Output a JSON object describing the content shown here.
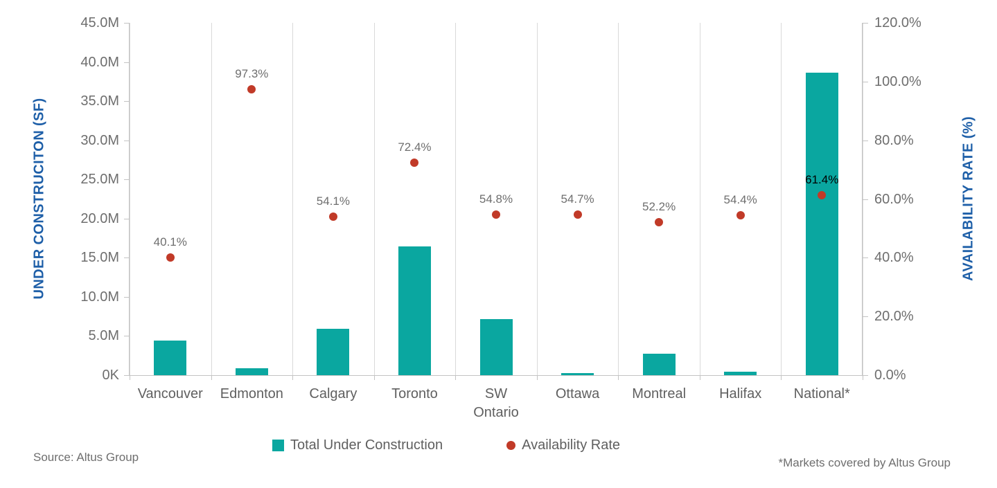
{
  "colors": {
    "bar_teal": "#0aa7a0",
    "dot_red": "#c13a28",
    "axis_title_blue": "#1e5fa8",
    "tick_text_gray": "#6e6e6e",
    "x_label_gray": "#5f5f5f",
    "gridline_gray": "#d9d9d9",
    "national_point_label": "#000000"
  },
  "chart_data": {
    "type": "bar",
    "subtype": "dual-axis combo: bars (left axis) + scatter points with data labels (right axis)",
    "categories": [
      "Vancouver",
      "Edmonton",
      "Calgary",
      "Toronto",
      "SW\nOntario",
      "Ottawa",
      "Montreal",
      "Halifax",
      "National*"
    ],
    "series": [
      {
        "name": "Total Under Construction",
        "type": "bar",
        "axis": "left",
        "unit": "M SF (estimated from axis)",
        "values": [
          4.4,
          0.9,
          5.9,
          16.4,
          7.2,
          0.3,
          2.7,
          0.4,
          38.6
        ]
      },
      {
        "name": "Availability Rate",
        "type": "scatter",
        "axis": "right",
        "unit": "%",
        "values": [
          40.1,
          97.3,
          54.1,
          72.4,
          54.8,
          54.7,
          52.2,
          54.4,
          61.4
        ],
        "labels": [
          "40.1%",
          "97.3%",
          "54.1%",
          "72.4%",
          "54.8%",
          "54.7%",
          "52.2%",
          "54.4%",
          "61.4%"
        ],
        "label_colors": [
          "#6e6e6e",
          "#6e6e6e",
          "#6e6e6e",
          "#6e6e6e",
          "#6e6e6e",
          "#6e6e6e",
          "#6e6e6e",
          "#6e6e6e",
          "#000000"
        ]
      }
    ],
    "left_axis": {
      "label": "UNDER CONSTRUCITON (SF)",
      "ticks": [
        "45.0M",
        "40.0M",
        "35.0M",
        "30.0M",
        "25.0M",
        "20.0M",
        "15.0M",
        "10.0M",
        "5.0M",
        "0K"
      ],
      "range_m_sf": [
        0,
        45
      ]
    },
    "right_axis": {
      "label": "AVAILABILITY RATE (%)",
      "ticks": [
        "120.0%",
        "100.0%",
        "80.0%",
        "60.0%",
        "40.0%",
        "20.0%",
        "0.0%"
      ],
      "range_pct": [
        0,
        120
      ]
    },
    "grid": "vertical category boundaries only",
    "legend_position": "bottom",
    "legend": [
      {
        "label": "Total Under Construction",
        "marker": "square"
      },
      {
        "label": "Availability Rate",
        "marker": "circle"
      }
    ]
  },
  "footer": {
    "source": "Source: Altus Group",
    "note": "*Markets covered by Altus Group"
  }
}
